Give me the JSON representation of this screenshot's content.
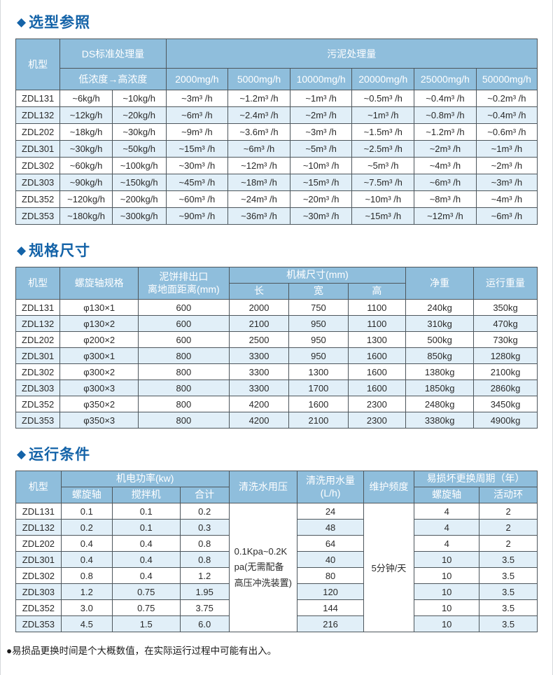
{
  "footnote": "●易损品更换时间是个大概数值，在实际运行过程中可能有出入。",
  "colors": {
    "title_text": "#1463a8",
    "header_bg": "#8fbedc",
    "header_text": "#ffffff",
    "row_alt_bg": "#e1eff8",
    "border": "#4d565c"
  },
  "selection": {
    "title": "选型参照",
    "header": {
      "model": "机型",
      "ds_group": "DS标准处理量",
      "ds_sub": "低浓度→高浓度",
      "sludge_group": "污泥处理量",
      "sludge_cols": [
        "2000mg/h",
        "5000mg/h",
        "10000mg/h",
        "20000mg/h",
        "25000mg/h",
        "50000mg/h"
      ]
    },
    "rows": [
      [
        "ZDL131",
        "~6kg/h",
        "~10kg/h",
        "~3m³ /h",
        "~1.2m³ /h",
        "~1m³ /h",
        "~0.5m³ /h",
        "~0.4m³ /h",
        "~0.2m³ /h"
      ],
      [
        "ZDL132",
        "~12kg/h",
        "~20kg/h",
        "~6m³ /h",
        "~2.4m³ /h",
        "~2m³ /h",
        "~1m³ /h",
        "~0.8m³ /h",
        "~0.4m³ /h"
      ],
      [
        "ZDL202",
        "~18kg/h",
        "~30kg/h",
        "~9m³ /h",
        "~3.6m³ /h",
        "~3m³ /h",
        "~1.5m³ /h",
        "~1.2m³ /h",
        "~0.6m³ /h"
      ],
      [
        "ZDL301",
        "~30kg/h",
        "~50kg/h",
        "~15m³ /h",
        "~6m³ /h",
        "~5m³ /h",
        "~2.5m³ /h",
        "~2m³ /h",
        "~1m³ /h"
      ],
      [
        "ZDL302",
        "~60kg/h",
        "~100kg/h",
        "~30m³ /h",
        "~12m³ /h",
        "~10m³ /h",
        "~5m³ /h",
        "~4m³ /h",
        "~2m³ /h"
      ],
      [
        "ZDL303",
        "~90kg/h",
        "~150kg/h",
        "~45m³ /h",
        "~18m³ /h",
        "~15m³ /h",
        "~7.5m³ /h",
        "~6m³ /h",
        "~3m³ /h"
      ],
      [
        "ZDL352",
        "~120kg/h",
        "~200kg/h",
        "~60m³ /h",
        "~24m³ /h",
        "~20m³ /h",
        "~10m³ /h",
        "~8m³ /h",
        "~4m³ /h"
      ],
      [
        "ZDL353",
        "~180kg/h",
        "~300kg/h",
        "~90m³ /h",
        "~36m³ /h",
        "~30m³ /h",
        "~15m³ /h",
        "~12m³ /h",
        "~6m³ /h"
      ]
    ]
  },
  "spec": {
    "title": "规格尺寸",
    "header": {
      "model": "机型",
      "shaft": "螺旋轴规格",
      "outlet": "泥饼排出口\n离地面距离(mm)",
      "dims_group": "机械尺寸(mm)",
      "dims_cols": [
        "长",
        "宽",
        "高"
      ],
      "net_weight": "净重",
      "run_weight": "运行重量"
    },
    "rows": [
      [
        "ZDL131",
        "φ130×1",
        "600",
        "2000",
        "750",
        "1100",
        "240kg",
        "350kg"
      ],
      [
        "ZDL132",
        "φ130×2",
        "600",
        "2100",
        "950",
        "1100",
        "310kg",
        "470kg"
      ],
      [
        "ZDL202",
        "φ200×2",
        "600",
        "2500",
        "950",
        "1300",
        "500kg",
        "730kg"
      ],
      [
        "ZDL301",
        "φ300×1",
        "800",
        "3300",
        "950",
        "1600",
        "850kg",
        "1280kg"
      ],
      [
        "ZDL302",
        "φ300×2",
        "800",
        "3300",
        "1300",
        "1600",
        "1380kg",
        "2100kg"
      ],
      [
        "ZDL303",
        "φ300×3",
        "800",
        "3300",
        "1700",
        "1600",
        "1850kg",
        "2860kg"
      ],
      [
        "ZDL352",
        "φ350×2",
        "800",
        "4200",
        "1600",
        "2300",
        "2480kg",
        "3450kg"
      ],
      [
        "ZDL353",
        "φ350×3",
        "800",
        "4200",
        "2100",
        "2300",
        "3380kg",
        "4900kg"
      ]
    ]
  },
  "operation": {
    "title": "运行条件",
    "header": {
      "model": "机型",
      "power_group": "机电功率(kw)",
      "power_cols": [
        "螺旋轴",
        "搅拌机",
        "合计"
      ],
      "pressure": "清洗水用压",
      "usage": "清洗用水量\n(L/h)",
      "maintenance": "维护频度",
      "wear_group": "易损坏更换周期（年）",
      "wear_cols": [
        "螺旋轴",
        "活动环"
      ]
    },
    "pressure_note": "0.1Kpa~0.2Kpa(无需配备高压冲洗装置)",
    "maintenance_value": "5分钟/天",
    "rows": [
      [
        "ZDL131",
        "0.1",
        "0.1",
        "0.2",
        "24",
        "4",
        "2"
      ],
      [
        "ZDL132",
        "0.2",
        "0.1",
        "0.3",
        "48",
        "4",
        "2"
      ],
      [
        "ZDL202",
        "0.4",
        "0.4",
        "0.8",
        "64",
        "4",
        "2"
      ],
      [
        "ZDL301",
        "0.4",
        "0.4",
        "0.8",
        "40",
        "10",
        "3.5"
      ],
      [
        "ZDL302",
        "0.8",
        "0.4",
        "1.2",
        "80",
        "10",
        "3.5"
      ],
      [
        "ZDL303",
        "1.2",
        "0.75",
        "1.95",
        "120",
        "10",
        "3.5"
      ],
      [
        "ZDL352",
        "3.0",
        "0.75",
        "3.75",
        "144",
        "10",
        "3.5"
      ],
      [
        "ZDL353",
        "4.5",
        "1.5",
        "6.0",
        "216",
        "10",
        "3.5"
      ]
    ]
  }
}
